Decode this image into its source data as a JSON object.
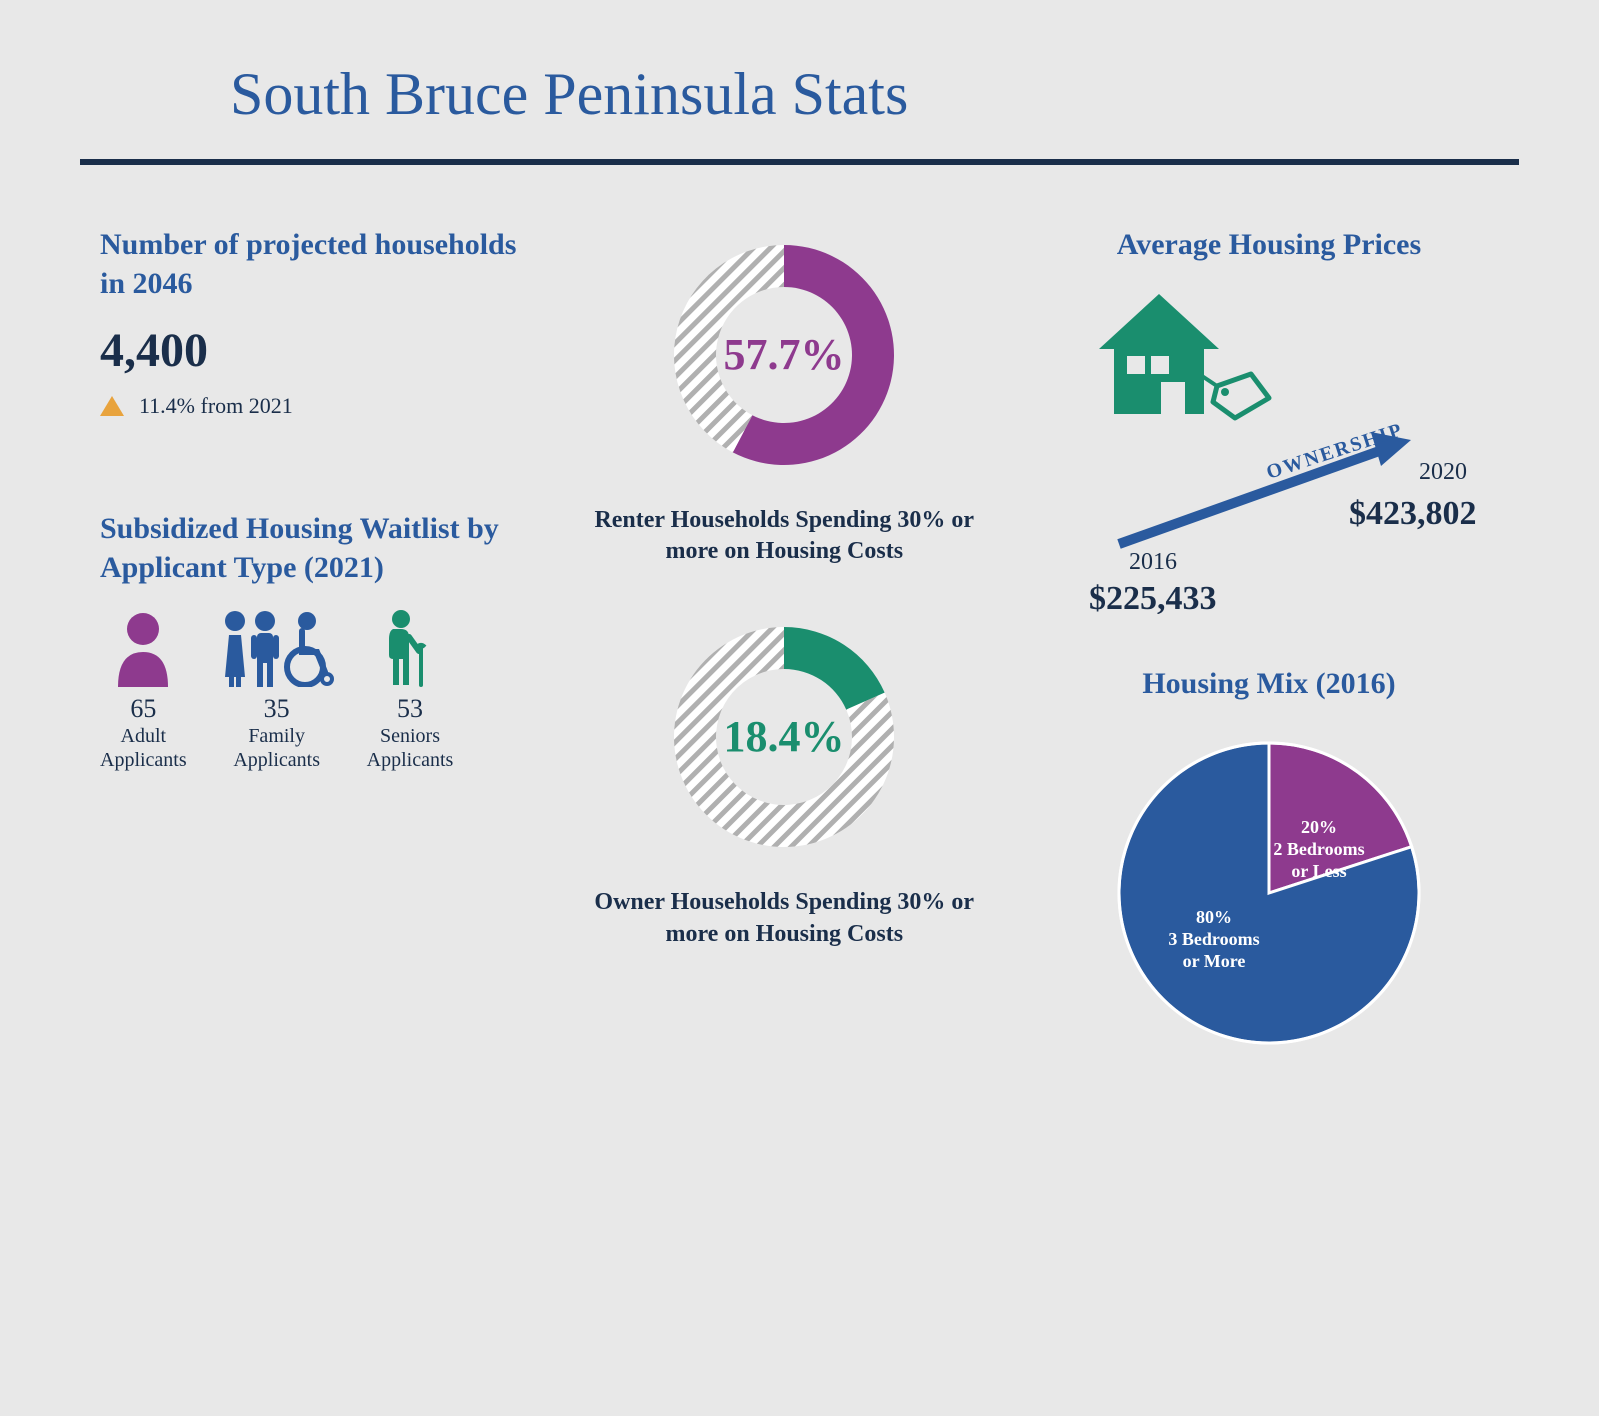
{
  "title": "South Bruce Peninsula Stats",
  "colors": {
    "background": "#e8e8e8",
    "heading_blue": "#2a5a9e",
    "dark_navy": "#1a2e4a",
    "purple": "#8e3a8e",
    "green": "#1a8e6e",
    "orange": "#e8a33d",
    "pie_blue": "#2a5a9e",
    "white": "#ffffff",
    "hatch_gray": "#b0b0b0"
  },
  "projected": {
    "heading": "Number of projected households in 2046",
    "value": "4,400",
    "delta_text": "11.4% from 2021"
  },
  "waitlist": {
    "heading": "Subsidized Housing Waitlist by Applicant Type (2021)",
    "items": [
      {
        "count": "65",
        "label1": "Adult",
        "label2": "Applicants",
        "color": "#8e3a8e"
      },
      {
        "count": "35",
        "label1": "Family",
        "label2": "Applicants",
        "color": "#2a5a9e"
      },
      {
        "count": "53",
        "label1": "Seniors",
        "label2": "Applicants",
        "color": "#1a8e6e"
      }
    ]
  },
  "donuts": [
    {
      "percent": 57.7,
      "display": "57.7%",
      "color": "#8e3a8e",
      "caption": "Renter Households Spending 30% or more on Housing Costs"
    },
    {
      "percent": 18.4,
      "display": "18.4%",
      "color": "#1a8e6e",
      "caption": "Owner Households Spending 30% or more on Housing Costs"
    }
  ],
  "prices": {
    "heading": "Average Housing Prices",
    "arrow_label": "OWNERSHIP",
    "start": {
      "year": "2016",
      "value": "$225,433"
    },
    "end": {
      "year": "2020",
      "value": "$423,802"
    }
  },
  "housing_mix": {
    "heading": "Housing Mix (2016)",
    "slices": [
      {
        "percent": 20,
        "label1": "20%",
        "label2": "2 Bedrooms",
        "label3": "or Less",
        "color": "#8e3a8e"
      },
      {
        "percent": 80,
        "label1": "80%",
        "label2": "3 Bedrooms",
        "label3": "or More",
        "color": "#2a5a9e"
      }
    ]
  },
  "donut_style": {
    "outer_r": 110,
    "inner_r": 68,
    "center_fontsize": 44
  },
  "pie_style": {
    "r": 150,
    "stroke": "#ffffff",
    "stroke_width": 3
  }
}
